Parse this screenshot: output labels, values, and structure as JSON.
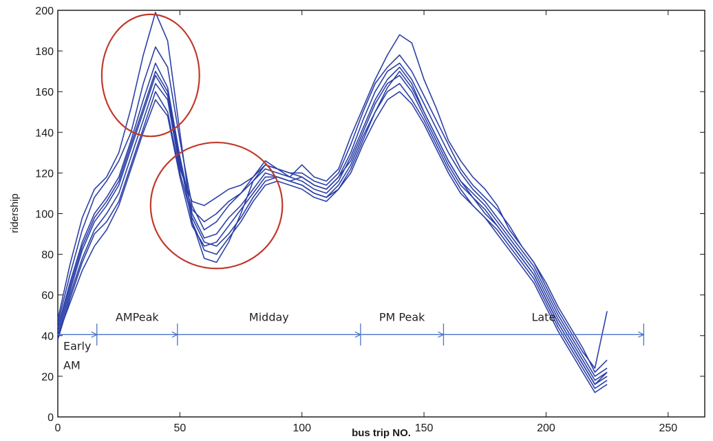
{
  "chart_data": {
    "type": "line",
    "xlabel": "bus trip NO.",
    "ylabel": "ridership",
    "xlim": [
      0,
      265
    ],
    "ylim": [
      0,
      200
    ],
    "x_ticks": [
      0,
      50,
      100,
      150,
      200,
      250
    ],
    "y_ticks": [
      0,
      20,
      40,
      60,
      80,
      100,
      120,
      140,
      160,
      180,
      200
    ],
    "grid": false,
    "line_color": "#2b3fa6",
    "x": [
      0,
      5,
      10,
      15,
      20,
      25,
      30,
      35,
      40,
      45,
      50,
      55,
      60,
      65,
      70,
      75,
      80,
      85,
      90,
      95,
      100,
      105,
      110,
      115,
      120,
      125,
      130,
      135,
      140,
      145,
      150,
      155,
      160,
      165,
      170,
      175,
      180,
      185,
      190,
      195,
      200,
      205,
      210,
      215,
      220,
      225
    ],
    "series": [
      {
        "values": [
          48,
          75,
          98,
          112,
          118,
          130,
          152,
          178,
          199,
          185,
          140,
          96,
          78,
          76,
          86,
          100,
          116,
          124,
          122,
          118,
          124,
          118,
          116,
          122,
          138,
          152,
          166,
          178,
          188,
          184,
          166,
          152,
          136,
          126,
          118,
          112,
          104,
          92,
          84,
          76,
          64,
          52,
          42,
          32,
          24,
          52
        ]
      },
      {
        "values": [
          46,
          70,
          92,
          108,
          116,
          126,
          140,
          164,
          182,
          172,
          136,
          104,
          92,
          96,
          104,
          110,
          118,
          126,
          122,
          120,
          120,
          116,
          114,
          120,
          134,
          150,
          164,
          172,
          178,
          170,
          158,
          146,
          134,
          122,
          114,
          108,
          102,
          94,
          84,
          76,
          66,
          54,
          44,
          34,
          22,
          28
        ]
      },
      {
        "values": [
          44,
          66,
          86,
          100,
          108,
          118,
          136,
          156,
          174,
          162,
          128,
          100,
          88,
          90,
          98,
          104,
          112,
          120,
          118,
          116,
          118,
          114,
          112,
          118,
          130,
          146,
          160,
          170,
          174,
          166,
          154,
          142,
          130,
          120,
          112,
          106,
          98,
          90,
          82,
          74,
          62,
          50,
          40,
          30,
          20,
          24
        ]
      },
      {
        "values": [
          42,
          62,
          82,
          96,
          104,
          114,
          132,
          150,
          168,
          158,
          124,
          102,
          96,
          100,
          106,
          110,
          116,
          122,
          120,
          118,
          116,
          112,
          110,
          116,
          128,
          142,
          156,
          166,
          172,
          164,
          150,
          138,
          126,
          116,
          110,
          104,
          96,
          88,
          80,
          72,
          60,
          48,
          38,
          28,
          18,
          22
        ]
      },
      {
        "values": [
          40,
          60,
          78,
          92,
          100,
          110,
          128,
          146,
          164,
          156,
          122,
          106,
          104,
          108,
          112,
          114,
          118,
          124,
          122,
          120,
          118,
          114,
          112,
          118,
          126,
          140,
          154,
          164,
          168,
          160,
          148,
          136,
          124,
          114,
          108,
          102,
          94,
          86,
          78,
          70,
          58,
          46,
          36,
          26,
          16,
          20
        ]
      },
      {
        "values": [
          38,
          58,
          76,
          90,
          96,
          106,
          124,
          142,
          160,
          150,
          120,
          98,
          86,
          84,
          90,
          98,
          108,
          116,
          118,
          116,
          114,
          110,
          108,
          114,
          124,
          138,
          150,
          160,
          164,
          156,
          146,
          134,
          122,
          112,
          104,
          98,
          92,
          84,
          76,
          68,
          56,
          44,
          34,
          24,
          14,
          18
        ]
      },
      {
        "values": [
          44,
          64,
          84,
          98,
          106,
          116,
          134,
          152,
          170,
          160,
          126,
          96,
          82,
          80,
          88,
          96,
          106,
          114,
          116,
          114,
          112,
          108,
          106,
          112,
          122,
          136,
          150,
          162,
          170,
          162,
          150,
          138,
          126,
          116,
          108,
          100,
          94,
          86,
          78,
          70,
          58,
          46,
          36,
          26,
          16,
          22
        ]
      },
      {
        "values": [
          40,
          56,
          72,
          84,
          92,
          104,
          122,
          140,
          156,
          148,
          118,
          94,
          84,
          86,
          94,
          102,
          110,
          118,
          118,
          116,
          114,
          110,
          108,
          112,
          120,
          134,
          146,
          156,
          160,
          154,
          144,
          132,
          120,
          110,
          104,
          98,
          90,
          82,
          74,
          66,
          54,
          42,
          32,
          22,
          12,
          16
        ]
      }
    ],
    "phases": [
      {
        "label": "Early",
        "start": 0,
        "end": 16
      },
      {
        "label": "AMPeak",
        "start": 16,
        "end": 49
      },
      {
        "label": "Midday",
        "start": 49,
        "end": 124
      },
      {
        "label": "PM Peak",
        "start": 124,
        "end": 158
      },
      {
        "label": "Late",
        "start": 158,
        "end": 240
      }
    ],
    "phase_sublabel": "AM",
    "phase_line_color": "#4a72c8",
    "highlight_color": "#c0392b",
    "highlights": [
      {
        "cx": 38,
        "cy": 168,
        "rx": 20,
        "ry": 30
      },
      {
        "cx": 65,
        "cy": 104,
        "rx": 27,
        "ry": 31
      }
    ]
  }
}
